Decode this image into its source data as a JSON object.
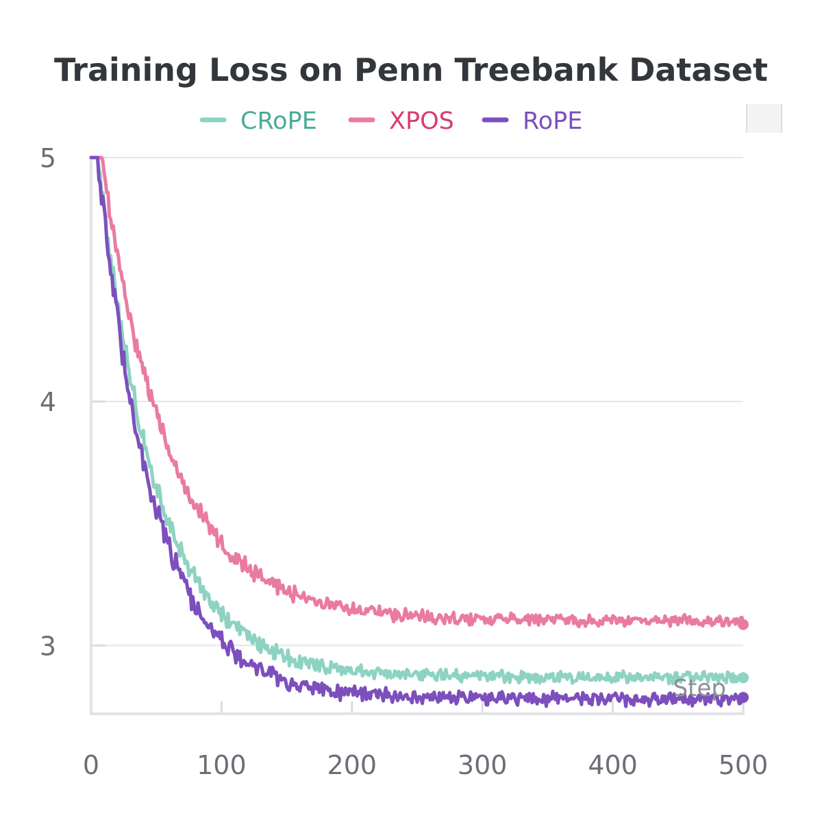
{
  "chart_data": {
    "type": "line",
    "title": "Training Loss on Penn Treebank Dataset",
    "xlabel": "Step",
    "ylabel": "",
    "xlim": [
      0,
      500
    ],
    "ylim": [
      2.72,
      5
    ],
    "xticks": [
      0,
      100,
      200,
      300,
      400,
      500
    ],
    "yticks": [
      3,
      4,
      5
    ],
    "grid": "horizontal",
    "legend_position": "top",
    "series": [
      {
        "name": "CRoPE",
        "color": "#8ed3c2",
        "text_color": "#4aab95",
        "start": 5.0,
        "final": 2.87,
        "decay": 45,
        "noise": 0.018,
        "offset_x": 5
      },
      {
        "name": "XPOS",
        "color": "#ea7ba0",
        "text_color": "#d63d72",
        "start": 5.0,
        "final": 3.1,
        "decay": 52,
        "noise": 0.018,
        "offset_x": 8
      },
      {
        "name": "RoPE",
        "color": "#7c4fbd",
        "text_color": "#7c4fbd",
        "start": 5.0,
        "final": 2.78,
        "decay": 43,
        "noise": 0.02,
        "offset_x": 5
      }
    ]
  }
}
